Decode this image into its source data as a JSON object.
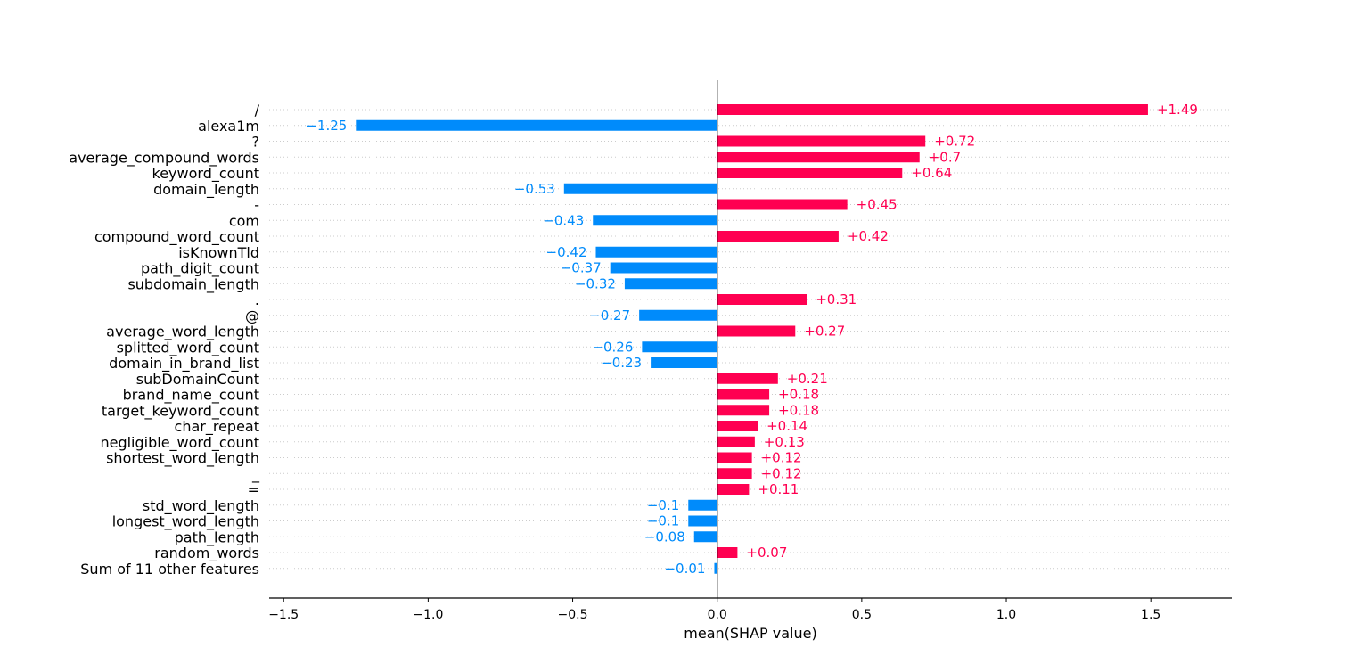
{
  "chart_data": {
    "type": "bar",
    "orientation": "horizontal",
    "xlabel": "mean(SHAP value)",
    "xlim": [
      -1.55,
      1.78
    ],
    "xticks": [
      -1.5,
      -1.0,
      -0.5,
      0.0,
      0.5,
      1.0,
      1.5
    ],
    "xtick_labels": [
      "−1.5",
      "−1.0",
      "−0.5",
      "0.0",
      "0.5",
      "1.0",
      "1.5"
    ],
    "grid": "dotted horizontal",
    "colors": {
      "positive": "#ff0051",
      "negative": "#008bfb"
    },
    "categories": [
      "/",
      "alexa1m",
      "?",
      "average_compound_words",
      "keyword_count",
      "domain_length",
      "-",
      "com",
      "compound_word_count",
      "isKnownTld",
      "path_digit_count",
      "subdomain_length",
      ".",
      "@",
      "average_word_length",
      "splitted_word_count",
      "domain_in_brand_list",
      "subDomainCount",
      "brand_name_count",
      "target_keyword_count",
      "char_repeat",
      "negligible_word_count",
      "shortest_word_length",
      "_",
      "=",
      "std_word_length",
      "longest_word_length",
      "path_length",
      "random_words",
      "Sum of 11 other features"
    ],
    "values": [
      1.49,
      -1.25,
      0.72,
      0.7,
      0.64,
      -0.53,
      0.45,
      -0.43,
      0.42,
      -0.42,
      -0.37,
      -0.32,
      0.31,
      -0.27,
      0.27,
      -0.26,
      -0.23,
      0.21,
      0.18,
      0.18,
      0.14,
      0.13,
      0.12,
      0.12,
      0.11,
      -0.1,
      -0.1,
      -0.08,
      0.07,
      -0.01
    ],
    "value_labels": [
      "+1.49",
      "−1.25",
      "+0.72",
      "+0.7",
      "+0.64",
      "−0.53",
      "+0.45",
      "−0.43",
      "+0.42",
      "−0.42",
      "−0.37",
      "−0.32",
      "+0.31",
      "−0.27",
      "+0.27",
      "−0.26",
      "−0.23",
      "+0.21",
      "+0.18",
      "+0.18",
      "+0.14",
      "+0.13",
      "+0.12",
      "+0.12",
      "+0.11",
      "−0.1",
      "−0.1",
      "−0.08",
      "+0.07",
      "−0.01"
    ]
  }
}
